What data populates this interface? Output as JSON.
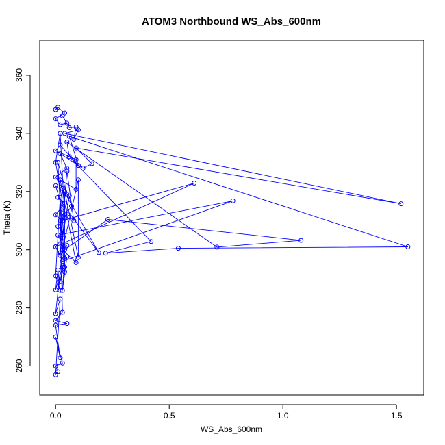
{
  "chart_data": {
    "type": "line",
    "title": "ATOM3 Northbound WS_Abs_600nm",
    "xlabel": "WS_Abs_600nm",
    "ylabel": "Theta (K)",
    "xlim": [
      -0.07,
      1.62
    ],
    "ylim": [
      250,
      372
    ],
    "xticks": [
      "0.0",
      "0.5",
      "1.0",
      "1.5"
    ],
    "xtick_values": [
      0.0,
      0.5,
      1.0,
      1.5
    ],
    "yticks": [
      "260",
      "280",
      "300",
      "320",
      "340",
      "360"
    ],
    "ytick_values": [
      260,
      280,
      300,
      320,
      340,
      360
    ],
    "series_color": "#0000FF",
    "marker": "open-circle",
    "grid": false,
    "series": [
      {
        "points": [
          [
            0.0,
            348.2
          ],
          [
            0.01,
            349.0
          ],
          [
            0.04,
            347.0
          ],
          [
            0.0,
            345.0
          ],
          [
            0.02,
            343.0
          ],
          [
            0.05,
            343.5
          ],
          [
            0.03,
            346.0
          ],
          [
            0.06,
            342.0
          ],
          [
            0.09,
            342.2
          ],
          [
            0.08,
            338.0
          ],
          [
            0.1,
            341.2
          ],
          [
            0.04,
            340.0
          ],
          [
            1.52,
            315.8
          ],
          [
            0.09,
            335.0
          ],
          [
            0.16,
            329.6
          ],
          [
            0.12,
            328.0
          ],
          [
            0.02,
            333.0
          ],
          [
            0.05,
            328.0
          ],
          [
            0.0,
            325.0
          ],
          [
            0.03,
            321.0
          ],
          [
            0.19,
            299.0
          ],
          [
            0.01,
            318.0
          ],
          [
            0.04,
            316.0
          ],
          [
            0.0,
            312.0
          ],
          [
            0.03,
            310.0
          ],
          [
            0.61,
            322.9
          ],
          [
            0.0,
            301.0
          ],
          [
            0.03,
            296.0
          ],
          [
            0.78,
            316.8
          ],
          [
            0.01,
            305.0
          ],
          [
            0.04,
            300.0
          ],
          [
            0.23,
            310.4
          ],
          [
            1.08,
            303.2
          ],
          [
            0.71,
            300.9
          ],
          [
            0.05,
            337.0
          ],
          [
            0.06,
            332.0
          ],
          [
            0.42,
            302.8
          ],
          [
            0.22,
            298.8
          ],
          [
            0.54,
            300.5
          ],
          [
            1.55,
            301.0
          ],
          [
            0.06,
            339.0
          ],
          [
            0.1,
            329.0
          ],
          [
            0.02,
            336.0
          ],
          [
            0.0,
            334.0
          ],
          [
            0.09,
            331.0
          ],
          [
            0.09,
            320.8
          ],
          [
            0.02,
            324.0
          ],
          [
            0.09,
            295.6
          ],
          [
            0.03,
            300.0
          ],
          [
            0.1,
            324.0
          ],
          [
            0.1,
            297.3
          ],
          [
            0.04,
            320.0
          ],
          [
            0.04,
            294.0
          ],
          [
            0.02,
            318.0
          ],
          [
            0.0,
            291.0
          ],
          [
            0.02,
            286.0
          ],
          [
            0.01,
            293.0
          ],
          [
            0.0,
            286.2
          ],
          [
            0.03,
            294.0
          ],
          [
            0.02,
            289.0
          ],
          [
            0.04,
            297.0
          ],
          [
            0.03,
            286.0
          ],
          [
            0.05,
            297.5
          ],
          [
            0.04,
            292.3
          ],
          [
            0.02,
            310.0
          ],
          [
            0.03,
            278.5
          ],
          [
            0.0,
            275.6
          ],
          [
            0.05,
            274.6
          ],
          [
            0.0,
            274.0
          ],
          [
            0.02,
            262.8
          ],
          [
            0.0,
            270.0
          ],
          [
            0.03,
            261.0
          ],
          [
            0.0,
            260.0
          ],
          [
            0.01,
            258.0
          ],
          [
            0.0,
            257.0
          ],
          [
            0.02,
            283.0
          ],
          [
            0.0,
            278.0
          ],
          [
            0.03,
            300.0
          ],
          [
            0.01,
            330.0
          ],
          [
            0.05,
            319.0
          ],
          [
            0.0,
            322.0
          ],
          [
            0.03,
            314.0
          ],
          [
            0.08,
            310.0
          ],
          [
            0.05,
            327.0
          ],
          [
            0.02,
            299.0
          ],
          [
            0.06,
            318.5
          ],
          [
            0.07,
            315.0
          ],
          [
            0.01,
            308.0
          ],
          [
            0.04,
            311.0
          ],
          [
            0.02,
            340.0
          ],
          [
            0.0,
            330.0
          ],
          [
            0.04,
            312.0
          ],
          [
            0.03,
            304.0
          ],
          [
            0.0,
            301.0
          ],
          [
            0.02,
            298.0
          ],
          [
            0.05,
            301.5
          ]
        ]
      }
    ]
  }
}
